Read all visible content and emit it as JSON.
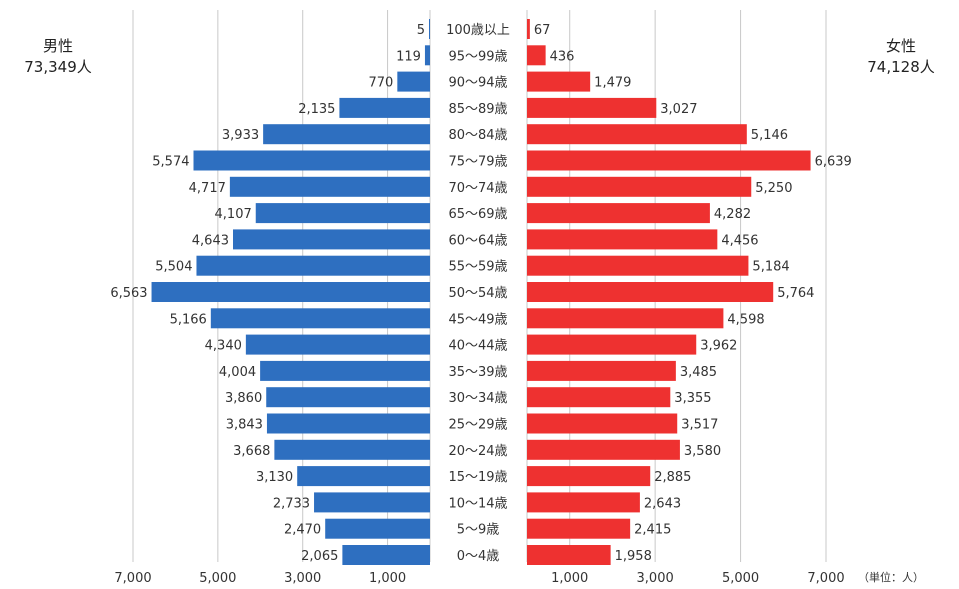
{
  "male": {
    "label": "男性",
    "total": "73,349人"
  },
  "female": {
    "label": "女性",
    "total": "74,128人"
  },
  "unit_note": "（単位：人）",
  "colors": {
    "male": "#2e6fc0",
    "female": "#ee3130",
    "grid": "#c8c8c8"
  },
  "chart_data": {
    "type": "bar",
    "orientation": "horizontal",
    "categories": [
      "100歳以上",
      "95～99歳",
      "90～94歳",
      "85～89歳",
      "80～84歳",
      "75～79歳",
      "70～74歳",
      "65～69歳",
      "60～64歳",
      "55～59歳",
      "50～54歳",
      "45～49歳",
      "40～44歳",
      "35～39歳",
      "30～34歳",
      "25～29歳",
      "20～24歳",
      "15～19歳",
      "10～14歳",
      "5～9歳",
      "0～4歳"
    ],
    "series": [
      {
        "name": "男性",
        "values": [
          5,
          119,
          770,
          2135,
          3933,
          5574,
          4717,
          4107,
          4643,
          5504,
          6563,
          5166,
          4340,
          4004,
          3860,
          3843,
          3668,
          3130,
          2733,
          2470,
          2065
        ]
      },
      {
        "name": "女性",
        "values": [
          67,
          436,
          1479,
          3027,
          5146,
          6639,
          5250,
          4282,
          4456,
          5184,
          5764,
          4598,
          3962,
          3485,
          3355,
          3517,
          3580,
          2885,
          2643,
          2415,
          1958
        ]
      }
    ],
    "xlim": [
      0,
      7000
    ],
    "x_ticks": [
      1000,
      3000,
      5000,
      7000
    ],
    "grid": true
  }
}
